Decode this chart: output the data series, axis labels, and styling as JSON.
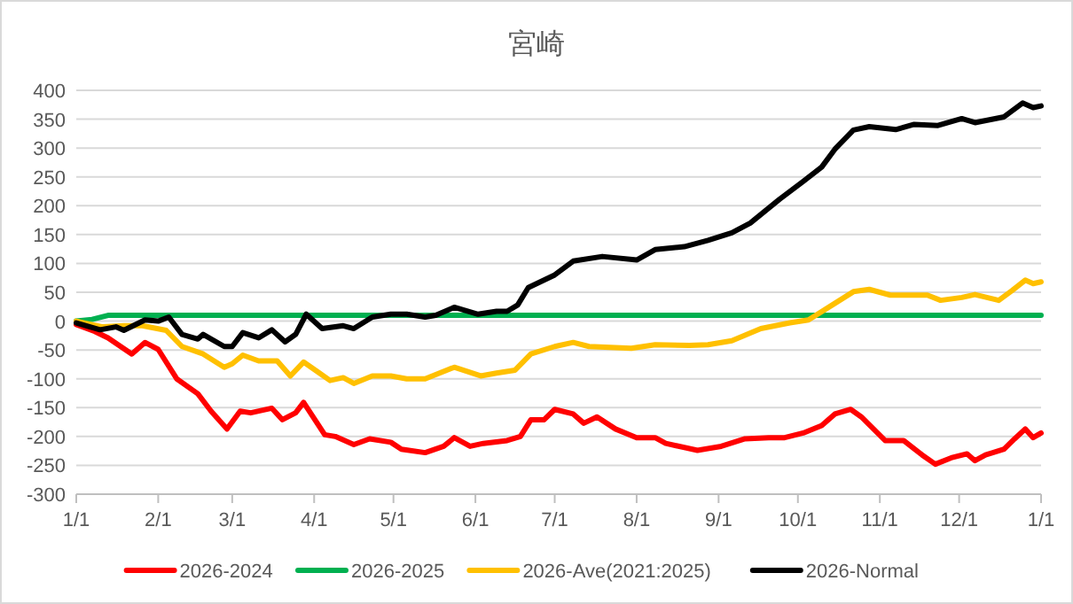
{
  "chart_data": {
    "type": "line",
    "title": "宮崎",
    "xlim": [
      "2026-01-01",
      "2027-01-01"
    ],
    "xticks": [
      {
        "value": "2026-01-01",
        "label": "1/1"
      },
      {
        "value": "2026-02-01",
        "label": "2/1"
      },
      {
        "value": "2026-03-01",
        "label": "3/1"
      },
      {
        "value": "2026-04-01",
        "label": "4/1"
      },
      {
        "value": "2026-05-01",
        "label": "5/1"
      },
      {
        "value": "2026-06-01",
        "label": "6/1"
      },
      {
        "value": "2026-07-01",
        "label": "7/1"
      },
      {
        "value": "2026-08-01",
        "label": "8/1"
      },
      {
        "value": "2026-09-01",
        "label": "9/1"
      },
      {
        "value": "2026-10-01",
        "label": "10/1"
      },
      {
        "value": "2026-11-01",
        "label": "11/1"
      },
      {
        "value": "2026-12-01",
        "label": "12/1"
      },
      {
        "value": "2027-01-01",
        "label": "1/1"
      }
    ],
    "ylim": [
      -300,
      400
    ],
    "yticks": [
      -300,
      -250,
      -200,
      -150,
      -100,
      -50,
      0,
      50,
      100,
      150,
      200,
      250,
      300,
      350,
      400
    ],
    "grid": "y",
    "legend": "bottom",
    "marker": "none",
    "line_style": "solid",
    "series": [
      {
        "name": "2026-2024",
        "color": "#ff0000",
        "x": [
          "2026-01-01",
          "2026-01-08",
          "2026-01-13",
          "2026-01-22",
          "2026-01-27",
          "2026-02-01",
          "2026-02-08",
          "2026-02-16",
          "2026-02-21",
          "2026-02-27",
          "2026-03-04",
          "2026-03-08",
          "2026-03-16",
          "2026-03-20",
          "2026-03-25",
          "2026-03-28",
          "2026-04-05",
          "2026-04-09",
          "2026-04-16",
          "2026-04-22",
          "2026-04-30",
          "2026-05-04",
          "2026-05-13",
          "2026-05-20",
          "2026-05-24",
          "2026-05-30",
          "2026-06-04",
          "2026-06-13",
          "2026-06-18",
          "2026-06-22",
          "2026-06-27",
          "2026-07-01",
          "2026-07-08",
          "2026-07-12",
          "2026-07-17",
          "2026-07-24",
          "2026-08-01",
          "2026-08-08",
          "2026-08-12",
          "2026-08-24",
          "2026-09-02",
          "2026-09-11",
          "2026-09-20",
          "2026-09-26",
          "2026-10-03",
          "2026-10-10",
          "2026-10-15",
          "2026-10-21",
          "2026-10-25",
          "2026-11-03",
          "2026-11-10",
          "2026-11-17",
          "2026-11-22",
          "2026-11-28",
          "2026-12-04",
          "2026-12-07",
          "2026-12-11",
          "2026-12-18",
          "2026-12-22",
          "2026-12-26",
          "2026-12-29",
          "2027-01-01"
        ],
        "values": [
          -6,
          -18,
          -29,
          -57,
          -37,
          -49,
          -100,
          -126,
          -156,
          -187,
          -156,
          -159,
          -151,
          -171,
          -159,
          -141,
          -197,
          -200,
          -214,
          -204,
          -210,
          -222,
          -228,
          -217,
          -202,
          -217,
          -212,
          -207,
          -200,
          -171,
          -171,
          -153,
          -161,
          -177,
          -166,
          -187,
          -202,
          -202,
          -212,
          -224,
          -217,
          -204,
          -202,
          -202,
          -194,
          -181,
          -161,
          -153,
          -166,
          -207,
          -207,
          -232,
          -248,
          -237,
          -230,
          -242,
          -232,
          -222,
          -204,
          -187,
          -202,
          -194
        ]
      },
      {
        "name": "2026-2025",
        "color": "#00b050",
        "x": [
          "2026-01-01",
          "2026-01-07",
          "2026-01-13",
          "2027-01-01"
        ],
        "values": [
          0,
          3,
          10,
          10
        ]
      },
      {
        "name": "2026-Ave(2021:2025)",
        "color": "#ffc000",
        "x": [
          "2026-01-01",
          "2026-01-11",
          "2026-01-19",
          "2026-01-26",
          "2026-02-04",
          "2026-02-10",
          "2026-02-18",
          "2026-02-26",
          "2026-03-01",
          "2026-03-05",
          "2026-03-11",
          "2026-03-18",
          "2026-03-23",
          "2026-03-28",
          "2026-04-03",
          "2026-04-07",
          "2026-04-12",
          "2026-04-16",
          "2026-04-23",
          "2026-04-30",
          "2026-05-06",
          "2026-05-13",
          "2026-05-24",
          "2026-06-03",
          "2026-06-09",
          "2026-06-16",
          "2026-06-22",
          "2026-07-01",
          "2026-07-08",
          "2026-07-14",
          "2026-07-30",
          "2026-08-08",
          "2026-08-21",
          "2026-08-28",
          "2026-09-06",
          "2026-09-17",
          "2026-09-28",
          "2026-10-05",
          "2026-10-14",
          "2026-10-22",
          "2026-10-28",
          "2026-11-05",
          "2026-11-19",
          "2026-11-24",
          "2026-12-02",
          "2026-12-07",
          "2026-12-16",
          "2026-12-21",
          "2026-12-26",
          "2026-12-29",
          "2027-01-01"
        ],
        "values": [
          0,
          -10,
          -8,
          -8,
          -16,
          -44,
          -57,
          -80,
          -74,
          -59,
          -69,
          -69,
          -95,
          -71,
          -90,
          -103,
          -98,
          -108,
          -95,
          -95,
          -100,
          -100,
          -80,
          -95,
          -90,
          -85,
          -57,
          -44,
          -37,
          -44,
          -47,
          -41,
          -42,
          -41,
          -34,
          -13,
          -3,
          2,
          28,
          51,
          55,
          45,
          45,
          36,
          41,
          46,
          36,
          53,
          71,
          65,
          68
        ]
      },
      {
        "name": "2026-Normal",
        "color": "#000000",
        "x": [
          "2026-01-01",
          "2026-01-10",
          "2026-01-16",
          "2026-01-19",
          "2026-01-27",
          "2026-02-01",
          "2026-02-05",
          "2026-02-10",
          "2026-02-16",
          "2026-02-18",
          "2026-02-26",
          "2026-03-01",
          "2026-03-05",
          "2026-03-11",
          "2026-03-16",
          "2026-03-21",
          "2026-03-25",
          "2026-03-29",
          "2026-04-04",
          "2026-04-12",
          "2026-04-16",
          "2026-04-23",
          "2026-04-30",
          "2026-05-06",
          "2026-05-13",
          "2026-05-17",
          "2026-05-24",
          "2026-06-02",
          "2026-06-09",
          "2026-06-13",
          "2026-06-17",
          "2026-06-21",
          "2026-07-01",
          "2026-07-08",
          "2026-07-19",
          "2026-08-01",
          "2026-08-08",
          "2026-08-19",
          "2026-08-28",
          "2026-09-06",
          "2026-09-13",
          "2026-09-24",
          "2026-10-03",
          "2026-10-10",
          "2026-10-15",
          "2026-10-22",
          "2026-10-28",
          "2026-11-07",
          "2026-11-14",
          "2026-11-23",
          "2026-12-02",
          "2026-12-07",
          "2026-12-18",
          "2026-12-25",
          "2026-12-29",
          "2027-01-01"
        ],
        "values": [
          -3,
          -15,
          -10,
          -16,
          2,
          0,
          7,
          -23,
          -31,
          -23,
          -44,
          -44,
          -20,
          -29,
          -15,
          -36,
          -23,
          12,
          -13,
          -8,
          -13,
          7,
          12,
          12,
          7,
          10,
          24,
          12,
          17,
          17,
          28,
          58,
          80,
          104,
          112,
          106,
          124,
          129,
          140,
          153,
          170,
          211,
          242,
          267,
          298,
          331,
          337,
          332,
          341,
          339,
          351,
          344,
          354,
          378,
          370,
          373
        ]
      }
    ]
  }
}
